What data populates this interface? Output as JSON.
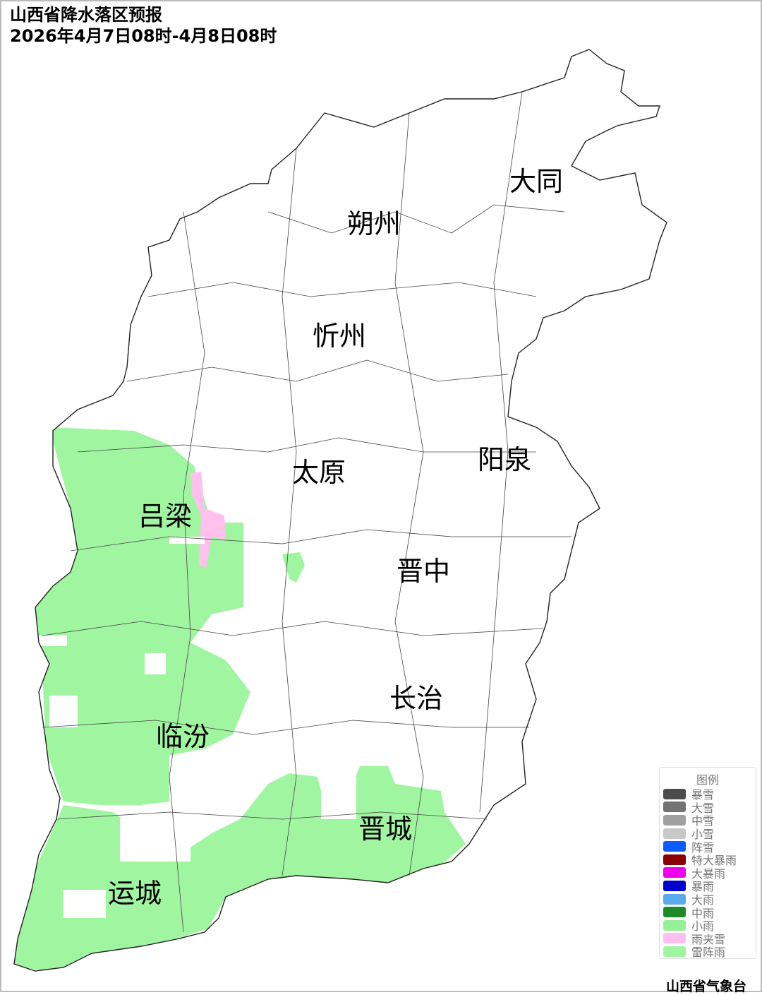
{
  "title": {
    "line1": "山西省降水落区预报",
    "line2": "2026年4月7日08时-4月8日08时"
  },
  "cities": [
    "大同",
    "朔州",
    "忻州",
    "太原",
    "阳泉",
    "吕梁",
    "晋中",
    "长治",
    "临汾",
    "晋城",
    "运城"
  ],
  "legend": {
    "title": "图例",
    "items": [
      {
        "label": "暴雪",
        "color": "#4d4d4d"
      },
      {
        "label": "大雪",
        "color": "#737373"
      },
      {
        "label": "中雪",
        "color": "#a0a0a0"
      },
      {
        "label": "小雪",
        "color": "#c8c8c8"
      },
      {
        "label": "阵雪",
        "color": "#0a5cff"
      },
      {
        "label": "特大暴雨",
        "color": "#8b0000"
      },
      {
        "label": "大暴雨",
        "color": "#ee00ee"
      },
      {
        "label": "暴雨",
        "color": "#0000cc"
      },
      {
        "label": "大雨",
        "color": "#5aa9ea"
      },
      {
        "label": "中雨",
        "color": "#1e8a2a"
      },
      {
        "label": "小雨",
        "color": "#96f096"
      },
      {
        "label": "雨夹雪",
        "color": "#ffc0ee"
      },
      {
        "label": "雷阵雨",
        "color": "#a0f5a0"
      }
    ]
  },
  "footer": "山西省气象台"
}
